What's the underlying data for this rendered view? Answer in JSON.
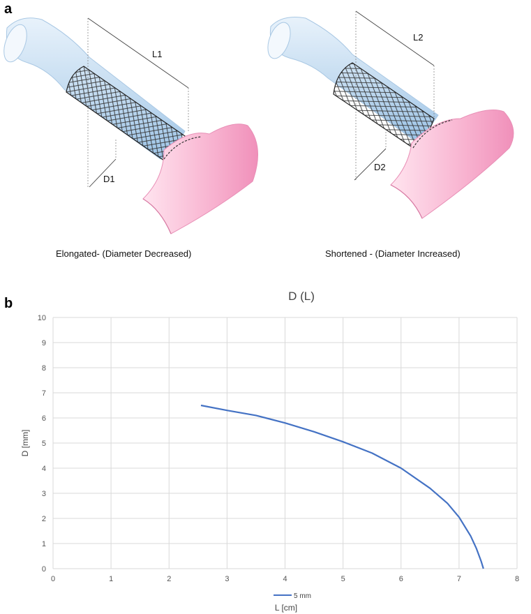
{
  "panel_a": {
    "letter": "a",
    "left": {
      "length_label": "L1",
      "diameter_label": "D1",
      "caption": "Elongated- (Diameter Decreased)"
    },
    "right": {
      "length_label": "L2",
      "diameter_label": "D2",
      "caption": "Shortened - (Diameter Increased)"
    },
    "colors": {
      "vessel_blue": "#b9d6ee",
      "vessel_pink": "#f4a6c8",
      "mesh": "#333333"
    }
  },
  "panel_b": {
    "letter": "b"
  },
  "chart_data": {
    "type": "line",
    "title": "D (L)",
    "xlabel": "L [cm]",
    "ylabel": "D [mm]",
    "xlim": [
      0,
      8
    ],
    "ylim": [
      0,
      10
    ],
    "xticks": [
      "0",
      "1",
      "2",
      "3",
      "4",
      "5",
      "6",
      "7",
      "8"
    ],
    "yticks": [
      "0",
      "1",
      "2",
      "3",
      "4",
      "5",
      "6",
      "7",
      "8",
      "9",
      "10"
    ],
    "grid": true,
    "legend_position": "bottom",
    "series": [
      {
        "name": "5 mm",
        "color": "#4472c4",
        "x": [
          2.55,
          3.0,
          3.5,
          4.0,
          4.5,
          5.0,
          5.5,
          6.0,
          6.5,
          6.8,
          7.0,
          7.2,
          7.3,
          7.38,
          7.42
        ],
        "y": [
          6.5,
          6.3,
          6.1,
          5.8,
          5.45,
          5.05,
          4.6,
          4.0,
          3.2,
          2.6,
          2.05,
          1.3,
          0.8,
          0.3,
          0.0
        ]
      }
    ]
  }
}
